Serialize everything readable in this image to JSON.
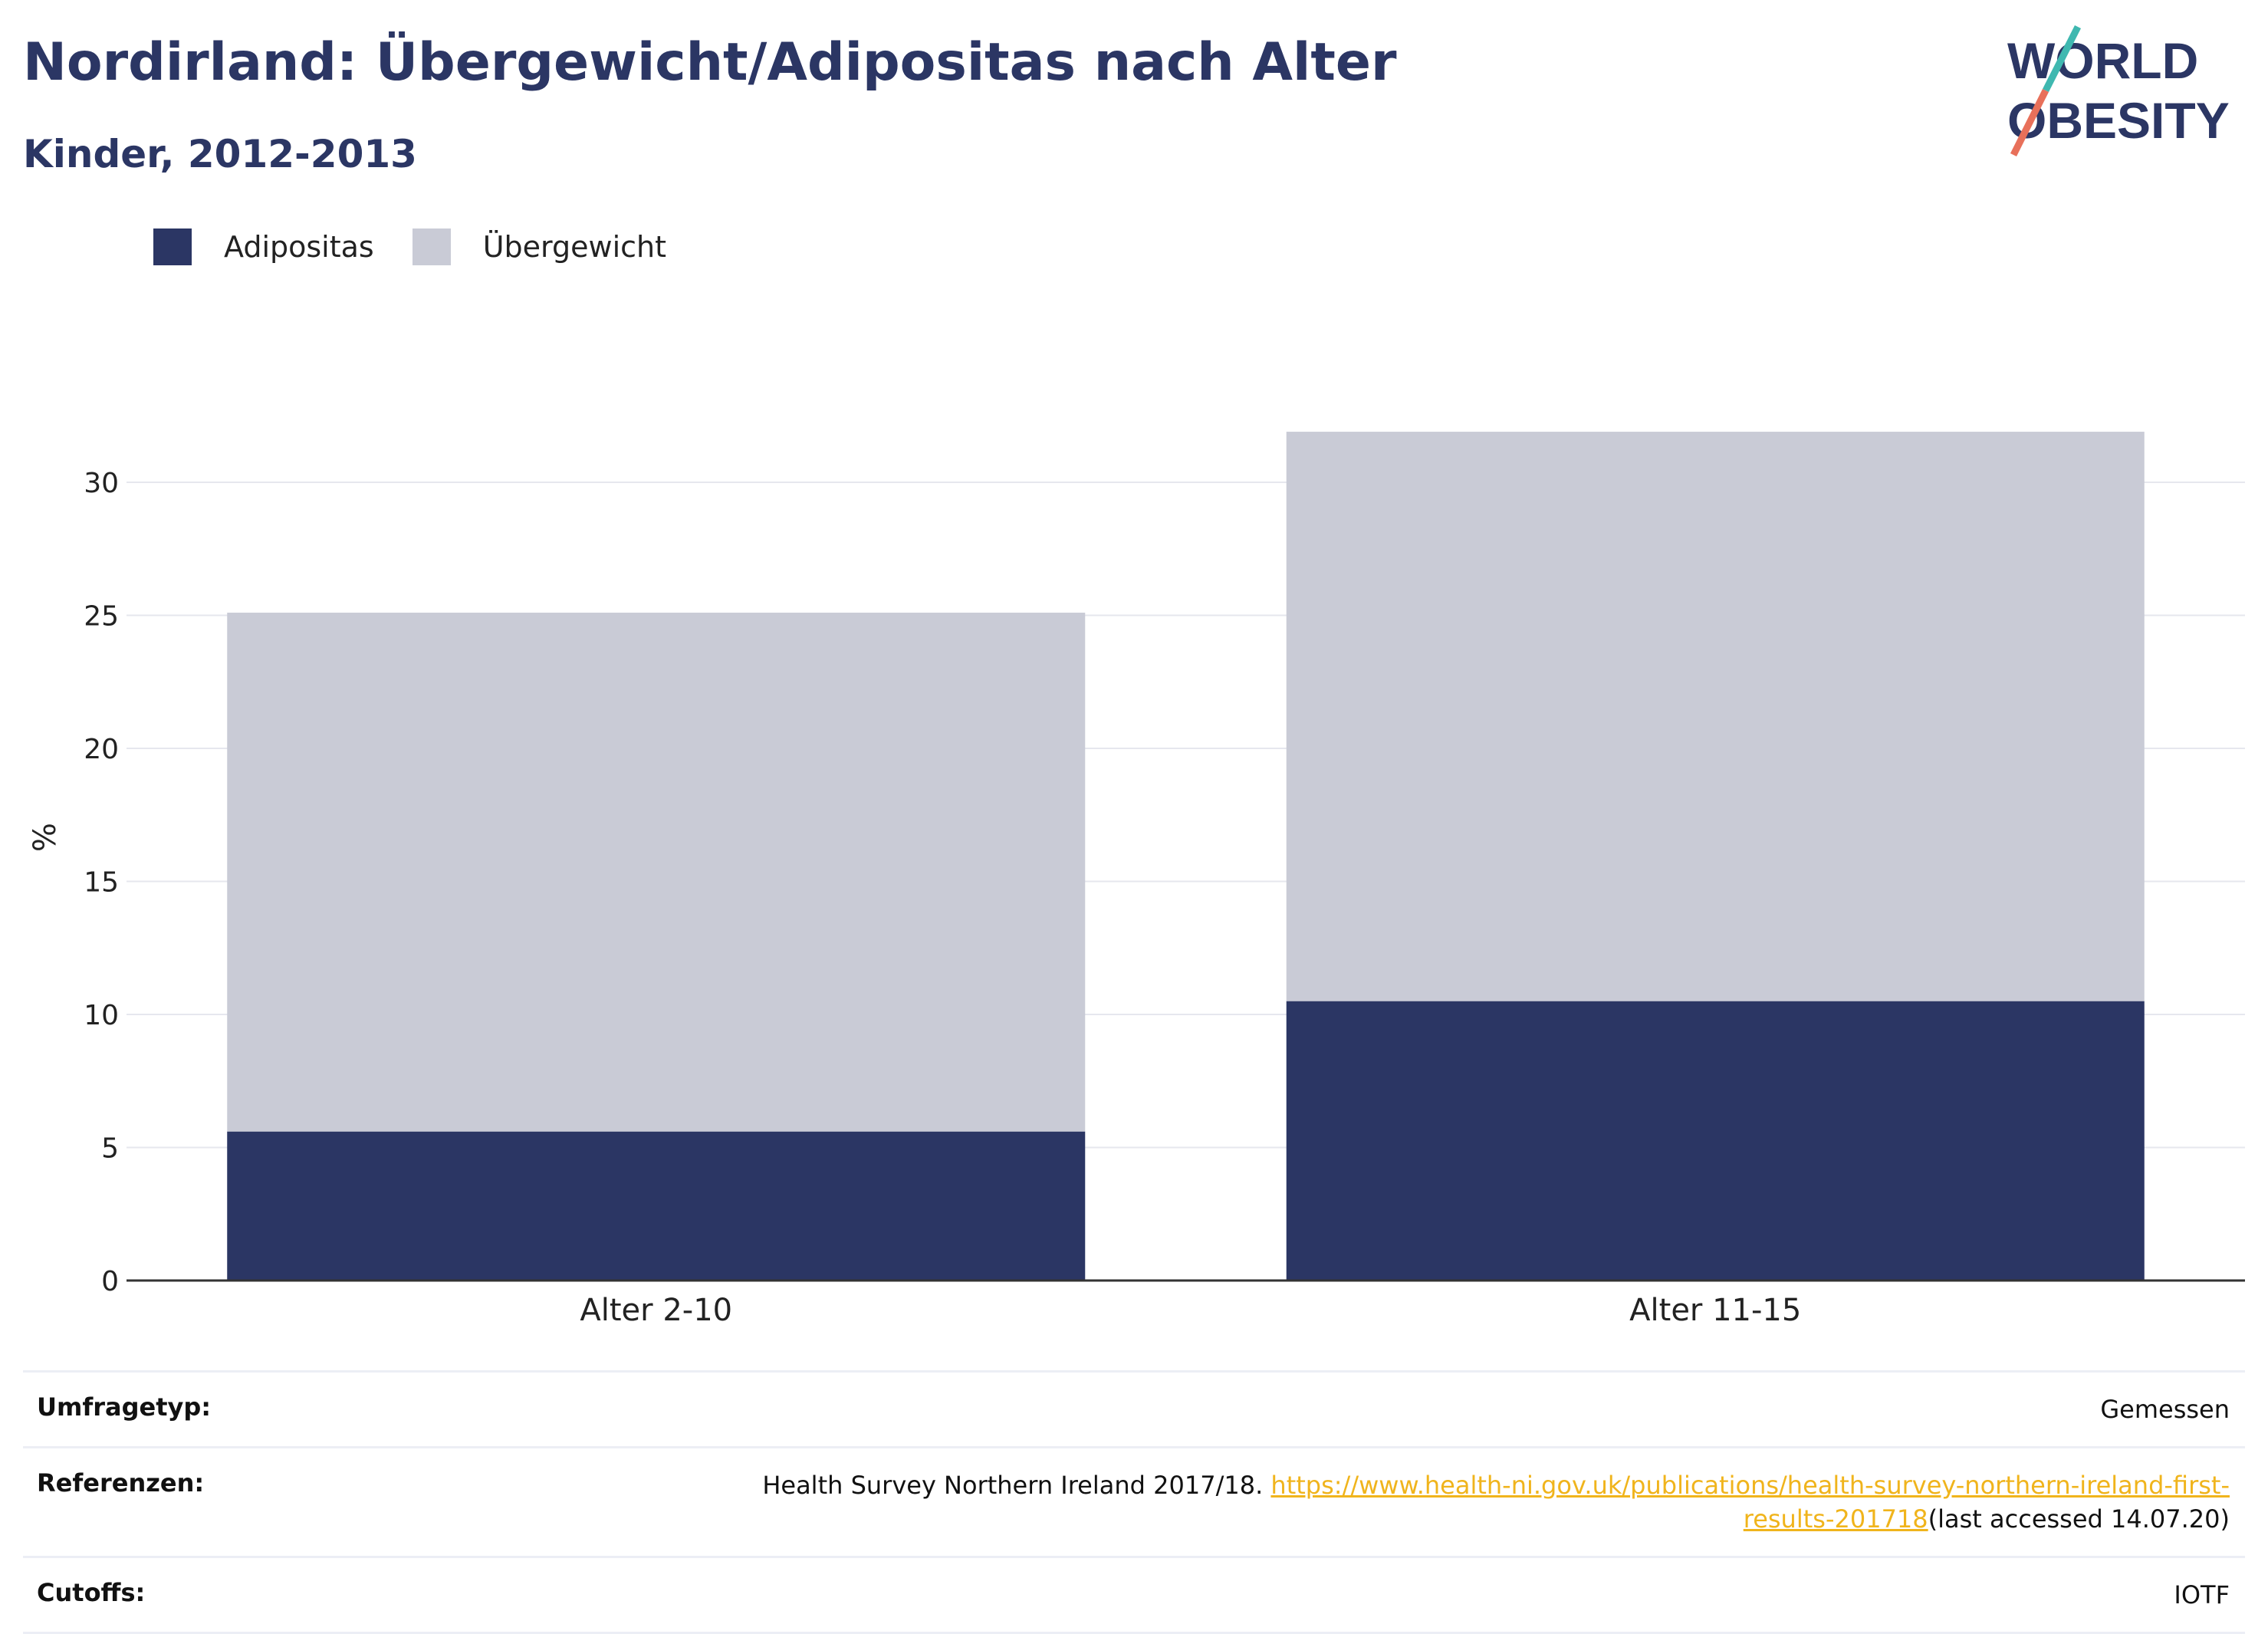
{
  "title": "Nordirland: Übergewicht/Adipositas nach Alter",
  "subtitle": "Kinder, 2012-2013",
  "logo": {
    "line1": "WORLD",
    "line2": "OBESITY",
    "colors": {
      "text": "#2b3664",
      "slash_top": "#3fb8b0",
      "slash_bottom": "#e8705a"
    }
  },
  "legend": [
    {
      "label": "Adipositas",
      "color": "#2b3664"
    },
    {
      "label": "Übergewicht",
      "color": "#c9cbd6"
    }
  ],
  "chart_data": {
    "type": "bar",
    "stacked": true,
    "categories": [
      "Alter 2-10",
      "Alter 11-15"
    ],
    "series": [
      {
        "name": "Adipositas",
        "values": [
          5.6,
          10.5
        ],
        "color": "#2b3664"
      },
      {
        "name": "Übergewicht",
        "values": [
          19.5,
          21.4
        ],
        "color": "#c9cbd6"
      }
    ],
    "ylabel": "%",
    "yticks": [
      0,
      5,
      10,
      15,
      20,
      25,
      30
    ],
    "ylim": [
      0,
      32
    ],
    "grid": true
  },
  "info": [
    {
      "key": "Umfragetyp:",
      "value": "Gemessen"
    },
    {
      "key": "Referenzen:",
      "value_prefix": "Health Survey Northern Ireland 2017/18. ",
      "link": "https://www.health-ni.gov.uk/publications/health-survey-northern-ireland-first-results-201718",
      "value_suffix": "(last accessed 14.07.20)"
    },
    {
      "key": "Cutoffs:",
      "value": "IOTF"
    }
  ]
}
